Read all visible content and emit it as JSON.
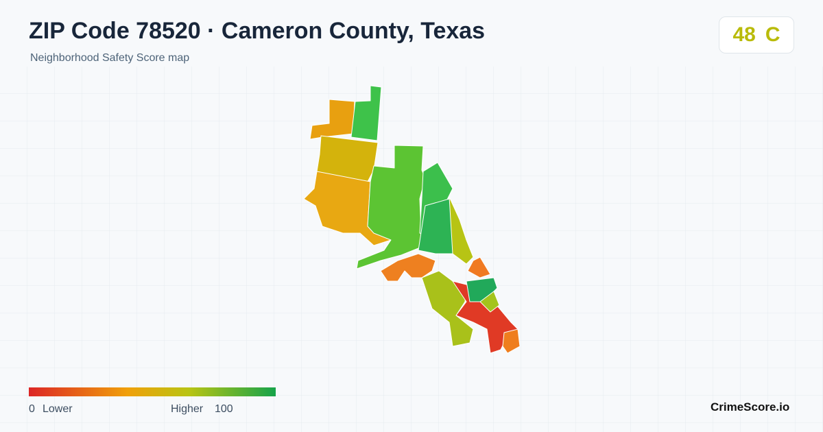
{
  "header": {
    "title": "ZIP Code 78520 · Cameron County, Texas",
    "subtitle": "Neighborhood Safety Score map"
  },
  "score": {
    "value": 48,
    "grade": "C"
  },
  "legend": {
    "min": 0,
    "min_label": "Lower",
    "max_label": "Higher",
    "max": 100
  },
  "brand": "CrimeScore.io"
}
